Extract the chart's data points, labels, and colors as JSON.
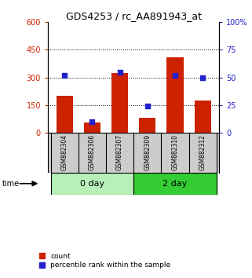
{
  "title": "GDS4253 / rc_AA891943_at",
  "samples": [
    "GSM882304",
    "GSM882306",
    "GSM882307",
    "GSM882309",
    "GSM882310",
    "GSM882312"
  ],
  "count_values": [
    200,
    55,
    325,
    80,
    410,
    175
  ],
  "percentile_values": [
    52,
    10,
    55,
    24,
    52,
    50
  ],
  "groups": [
    {
      "label": "0 day",
      "indices": [
        0,
        1,
        2
      ],
      "color": "#b8f0b8"
    },
    {
      "label": "2 day",
      "indices": [
        3,
        4,
        5
      ],
      "color": "#33cc33"
    }
  ],
  "bar_color": "#cc2200",
  "dot_color": "#2222cc",
  "left_ylim": [
    0,
    600
  ],
  "right_ylim": [
    0,
    100
  ],
  "left_yticks": [
    0,
    150,
    300,
    450,
    600
  ],
  "right_yticks": [
    0,
    25,
    50,
    75,
    100
  ],
  "right_yticklabels": [
    "0",
    "25",
    "50",
    "75",
    "100%"
  ],
  "grid_values": [
    150,
    300,
    450
  ],
  "bg_color": "#ffffff",
  "plot_bg": "#ffffff",
  "label_area_color": "#cccccc",
  "time_label": "time",
  "legend_count_label": "count",
  "legend_pct_label": "percentile rank within the sample"
}
